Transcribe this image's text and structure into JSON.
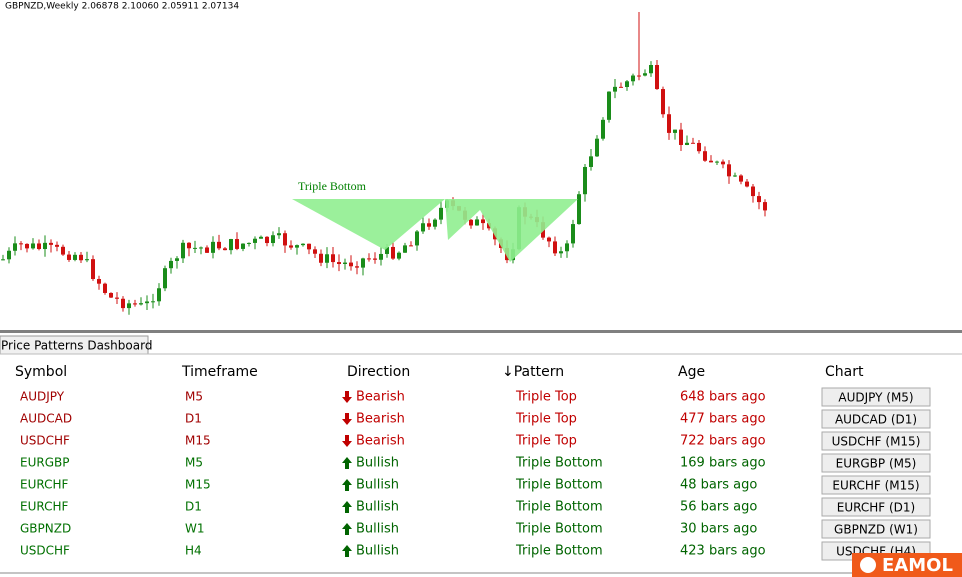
{
  "chart": {
    "header": "GBPNZD,Weekly  2.06878 2.10060 2.05911 2.07134",
    "annotation": "Triple Bottom"
  },
  "dashboard": {
    "title": "Price Patterns Dashboard",
    "columns": [
      "Symbol",
      "Timeframe",
      "Direction",
      "↓Pattern",
      "Age",
      "Chart"
    ],
    "rows": [
      {
        "symbol": "AUDJPY",
        "timeframe": "M5",
        "direction": "Bearish",
        "pattern": "Triple Top",
        "age": "648 bars ago",
        "chart": "AUDJPY (M5)"
      },
      {
        "symbol": "AUDCAD",
        "timeframe": "D1",
        "direction": "Bearish",
        "pattern": "Triple Top",
        "age": "477 bars ago",
        "chart": "AUDCAD (D1)"
      },
      {
        "symbol": "USDCHF",
        "timeframe": "M15",
        "direction": "Bearish",
        "pattern": "Triple Top",
        "age": "722 bars ago",
        "chart": "USDCHF (M15)"
      },
      {
        "symbol": "EURGBP",
        "timeframe": "M5",
        "direction": "Bullish",
        "pattern": "Triple Bottom",
        "age": "169 bars ago",
        "chart": "EURGBP (M5)"
      },
      {
        "symbol": "EURCHF",
        "timeframe": "M15",
        "direction": "Bullish",
        "pattern": "Triple Bottom",
        "age": "48 bars ago",
        "chart": "EURCHF (M15)"
      },
      {
        "symbol": "EURCHF",
        "timeframe": "D1",
        "direction": "Bullish",
        "pattern": "Triple Bottom",
        "age": "56 bars ago",
        "chart": "EURCHF (D1)"
      },
      {
        "symbol": "GBPNZD",
        "timeframe": "W1",
        "direction": "Bullish",
        "pattern": "Triple Bottom",
        "age": "30 bars ago",
        "chart": "GBPNZD (W1)"
      },
      {
        "symbol": "USDCHF",
        "timeframe": "H4",
        "direction": "Bullish",
        "pattern": "Triple Bottom",
        "age": "423 bars ago",
        "chart": "USDCHF (H4)"
      }
    ]
  },
  "logo": "EAMOL"
}
